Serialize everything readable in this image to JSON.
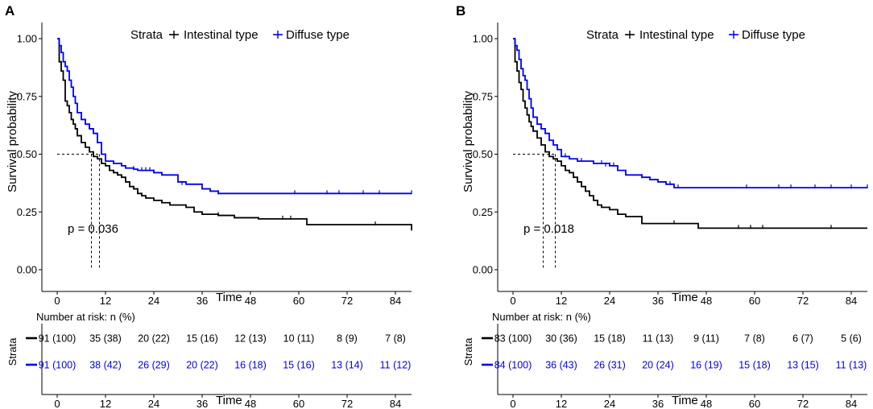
{
  "colors": {
    "intestinal": "#000000",
    "diffuse": "#0000ee"
  },
  "chart_data": [
    {
      "type": "line",
      "panel": "A",
      "title": "",
      "xlabel": "Time",
      "ylabel": "Survival probability",
      "xlim": [
        0,
        88
      ],
      "ylim": [
        0,
        1
      ],
      "xticks": [
        "0",
        "12",
        "24",
        "36",
        "48",
        "60",
        "72",
        "84"
      ],
      "yticks": [
        "0.00",
        "0.25",
        "0.50",
        "0.75",
        "1.00"
      ],
      "legend": {
        "title": "Strata",
        "labels": [
          "Intestinal  type",
          "Diffuse type"
        ],
        "placement": "top"
      },
      "p_value": "p = 0.036",
      "median_survival": {
        "intestinal": 8.5,
        "diffuse": 10.5
      },
      "series": [
        {
          "name": "Intestinal  type",
          "x": [
            0,
            0.5,
            1,
            1.5,
            2,
            2.5,
            3,
            3.5,
            4,
            4.5,
            5,
            6,
            7,
            8,
            9,
            10,
            11,
            12,
            13,
            14,
            15,
            16,
            17,
            18,
            19,
            20,
            21,
            22,
            24,
            26,
            28,
            32,
            34,
            36,
            40,
            44,
            50,
            56,
            62,
            75,
            88
          ],
          "y": [
            1.0,
            0.9,
            0.86,
            0.82,
            0.73,
            0.71,
            0.68,
            0.65,
            0.63,
            0.61,
            0.58,
            0.55,
            0.53,
            0.51,
            0.49,
            0.48,
            0.46,
            0.45,
            0.43,
            0.42,
            0.41,
            0.4,
            0.38,
            0.36,
            0.35,
            0.33,
            0.32,
            0.31,
            0.3,
            0.29,
            0.28,
            0.27,
            0.25,
            0.24,
            0.235,
            0.225,
            0.22,
            0.22,
            0.195,
            0.195,
            0.17
          ],
          "censor": [
            [
              40,
              0.235
            ],
            [
              56,
              0.22
            ],
            [
              58,
              0.22
            ],
            [
              79,
              0.195
            ]
          ]
        },
        {
          "name": "Diffuse type",
          "x": [
            0,
            0.5,
            1,
            1.5,
            2,
            2.5,
            3,
            3.5,
            4,
            4.5,
            5,
            6,
            7,
            8,
            9,
            10,
            11,
            12,
            14,
            16,
            17,
            18,
            19,
            20,
            22,
            24,
            26,
            30,
            32,
            36,
            38,
            40,
            88
          ],
          "y": [
            1.0,
            0.97,
            0.94,
            0.9,
            0.88,
            0.86,
            0.82,
            0.79,
            0.75,
            0.72,
            0.68,
            0.65,
            0.63,
            0.61,
            0.59,
            0.55,
            0.5,
            0.47,
            0.46,
            0.45,
            0.44,
            0.44,
            0.435,
            0.43,
            0.43,
            0.42,
            0.41,
            0.38,
            0.37,
            0.35,
            0.34,
            0.33,
            0.33
          ],
          "censor": [
            [
              19,
              0.435
            ],
            [
              21,
              0.43
            ],
            [
              22,
              0.43
            ],
            [
              23,
              0.43
            ],
            [
              24,
              0.42
            ],
            [
              31,
              0.37
            ],
            [
              40,
              0.33
            ],
            [
              59,
              0.33
            ],
            [
              67,
              0.33
            ],
            [
              70,
              0.33
            ],
            [
              76,
              0.33
            ],
            [
              80,
              0.33
            ],
            [
              88,
              0.33
            ]
          ]
        }
      ],
      "risk_table": {
        "title": "Number at risk: n (%)",
        "strata_label": "Strata",
        "rows": [
          [
            "91 (100)",
            "35 (38)",
            "20 (22)",
            "15 (16)",
            "12 (13)",
            "10 (11)",
            "8 (9)",
            "7 (8)"
          ],
          [
            "91 (100)",
            "38 (42)",
            "26 (29)",
            "20 (22)",
            "16 (18)",
            "15 (16)",
            "13 (14)",
            "11 (12)"
          ]
        ]
      }
    },
    {
      "type": "line",
      "panel": "B",
      "title": "",
      "xlabel": "Time",
      "ylabel": "Survival probability",
      "xlim": [
        0,
        88
      ],
      "ylim": [
        0,
        1
      ],
      "xticks": [
        "0",
        "12",
        "24",
        "36",
        "48",
        "60",
        "72",
        "84"
      ],
      "yticks": [
        "0.00",
        "0.25",
        "0.50",
        "0.75",
        "1.00"
      ],
      "legend": {
        "title": "Strata",
        "labels": [
          "Intestinal  type",
          "Diffuse type"
        ],
        "placement": "top"
      },
      "p_value": "p = 0.018",
      "median_survival": {
        "intestinal": 7.5,
        "diffuse": 10.5
      },
      "series": [
        {
          "name": "Intestinal  type",
          "x": [
            0,
            0.5,
            1,
            1.5,
            2,
            2.5,
            3,
            3.5,
            4,
            4.5,
            5,
            6,
            7,
            8,
            9,
            10,
            11,
            12,
            13,
            14,
            15,
            16,
            17,
            18,
            19,
            20,
            21,
            22,
            24,
            26,
            28,
            32,
            36,
            40,
            46,
            88
          ],
          "y": [
            1.0,
            0.9,
            0.86,
            0.81,
            0.78,
            0.73,
            0.7,
            0.67,
            0.64,
            0.62,
            0.6,
            0.57,
            0.54,
            0.51,
            0.49,
            0.48,
            0.47,
            0.45,
            0.43,
            0.42,
            0.4,
            0.38,
            0.36,
            0.34,
            0.32,
            0.3,
            0.28,
            0.27,
            0.26,
            0.24,
            0.23,
            0.2,
            0.2,
            0.2,
            0.18,
            0.18
          ],
          "censor": [
            [
              40,
              0.2
            ],
            [
              56,
              0.18
            ],
            [
              59,
              0.18
            ],
            [
              62,
              0.18
            ],
            [
              79,
              0.18
            ]
          ]
        },
        {
          "name": "Diffuse type",
          "x": [
            0,
            0.5,
            1,
            1.5,
            2,
            2.5,
            3,
            3.5,
            4,
            4.5,
            5,
            6,
            7,
            8,
            9,
            10,
            11,
            12,
            14,
            16,
            18,
            20,
            22,
            24,
            26,
            28,
            32,
            34,
            36,
            38,
            40,
            88
          ],
          "y": [
            1.0,
            0.97,
            0.95,
            0.91,
            0.87,
            0.84,
            0.82,
            0.78,
            0.74,
            0.7,
            0.66,
            0.63,
            0.61,
            0.59,
            0.56,
            0.54,
            0.52,
            0.49,
            0.48,
            0.47,
            0.47,
            0.46,
            0.46,
            0.45,
            0.43,
            0.41,
            0.4,
            0.39,
            0.38,
            0.37,
            0.355,
            0.355
          ],
          "censor": [
            [
              13,
              0.49
            ],
            [
              17,
              0.47
            ],
            [
              22,
              0.46
            ],
            [
              23,
              0.45
            ],
            [
              24,
              0.45
            ],
            [
              25,
              0.45
            ],
            [
              32,
              0.4
            ],
            [
              39,
              0.37
            ],
            [
              41,
              0.355
            ],
            [
              58,
              0.355
            ],
            [
              66,
              0.355
            ],
            [
              69,
              0.355
            ],
            [
              75,
              0.355
            ],
            [
              79,
              0.355
            ],
            [
              84,
              0.355
            ],
            [
              88,
              0.355
            ]
          ]
        }
      ],
      "risk_table": {
        "title": "Number at risk: n (%)",
        "strata_label": "Strata",
        "rows": [
          [
            "83 (100)",
            "30 (36)",
            "15 (18)",
            "11 (13)",
            "9 (11)",
            "7 (8)",
            "6 (7)",
            "5 (6)"
          ],
          [
            "84 (100)",
            "36 (43)",
            "26 (31)",
            "20 (24)",
            "16 (19)",
            "15 (18)",
            "13 (15)",
            "11 (13)"
          ]
        ]
      }
    }
  ]
}
